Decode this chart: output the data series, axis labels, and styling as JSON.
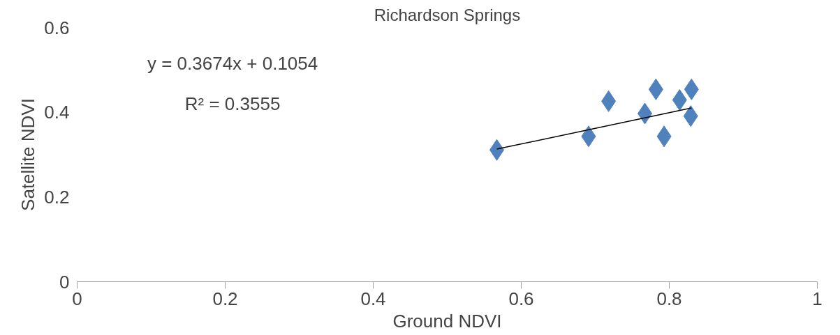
{
  "chart_data": {
    "type": "scatter",
    "title": "Richardson Springs",
    "xlabel": "Ground NDVI",
    "ylabel": "Satellite NDVI",
    "xlim": [
      0,
      1
    ],
    "xticks": [
      0,
      0.2,
      0.4,
      0.6,
      0.8,
      1
    ],
    "ylim": [
      0,
      0.6
    ],
    "yticks": [
      0,
      0.2,
      0.4,
      0.6
    ],
    "grid": false,
    "marker": "diamond",
    "series": [
      {
        "color": "#4f81bd",
        "x": [
          0.567,
          0.691,
          0.718,
          0.767,
          0.782,
          0.793,
          0.814,
          0.83,
          0.829
        ],
        "values": [
          0.311,
          0.343,
          0.426,
          0.397,
          0.454,
          0.343,
          0.429,
          0.454,
          0.391
        ]
      },
      {
        "type": "line",
        "marker": "none",
        "color": "#000000",
        "x": [
          0.567,
          0.83
        ],
        "values": [
          0.313,
          0.41
        ]
      }
    ],
    "annotations": [
      "y = 0.3674x + 0.1054",
      "R² = 0.3555"
    ]
  }
}
